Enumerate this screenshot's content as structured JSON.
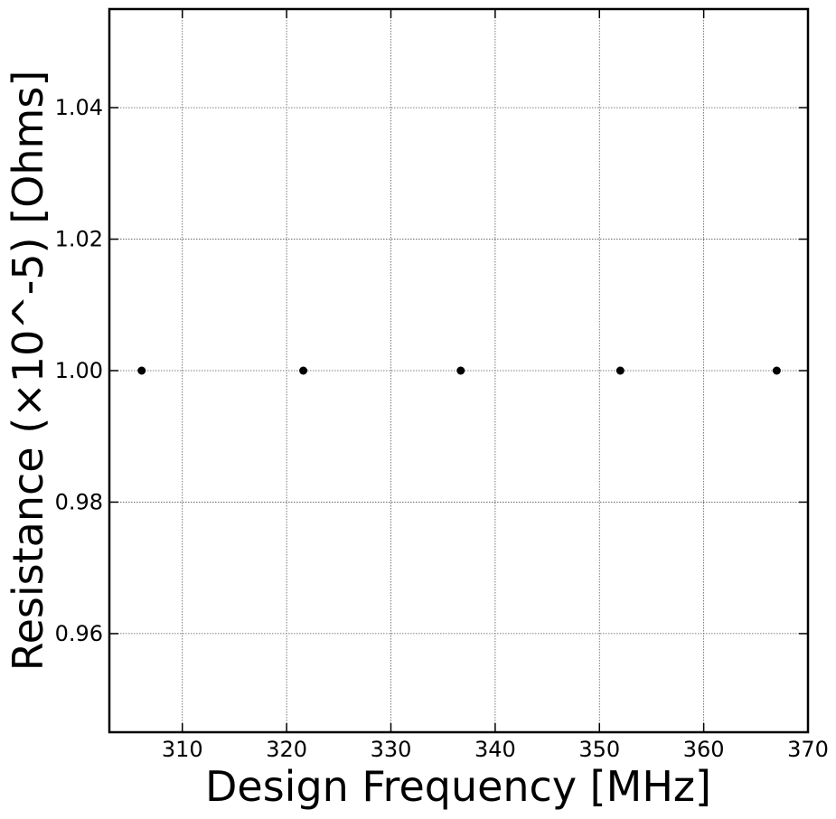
{
  "chart_data": {
    "type": "scatter",
    "xlabel": "Design Frequency [MHz]",
    "ylabel": "Resistance (×10^-5) [Ohms]",
    "xlim": [
      303,
      370
    ],
    "ylim": [
      0.945,
      1.055
    ],
    "x_ticks": [
      310,
      320,
      330,
      340,
      350,
      360,
      370
    ],
    "x_tick_labels": [
      "310",
      "320",
      "330",
      "340",
      "350",
      "360",
      "370"
    ],
    "y_ticks": [
      0.96,
      0.98,
      1.0,
      1.02,
      1.04
    ],
    "y_tick_labels": [
      "0.96",
      "0.98",
      "1.00",
      "1.02",
      "1.04"
    ],
    "grid": true,
    "marker_color": "#000000",
    "series": [
      {
        "points": [
          {
            "x": 306.1,
            "y": 1.0
          },
          {
            "x": 321.6,
            "y": 1.0
          },
          {
            "x": 336.7,
            "y": 1.0
          },
          {
            "x": 352.0,
            "y": 1.0
          },
          {
            "x": 367.0,
            "y": 1.0
          }
        ]
      }
    ]
  }
}
